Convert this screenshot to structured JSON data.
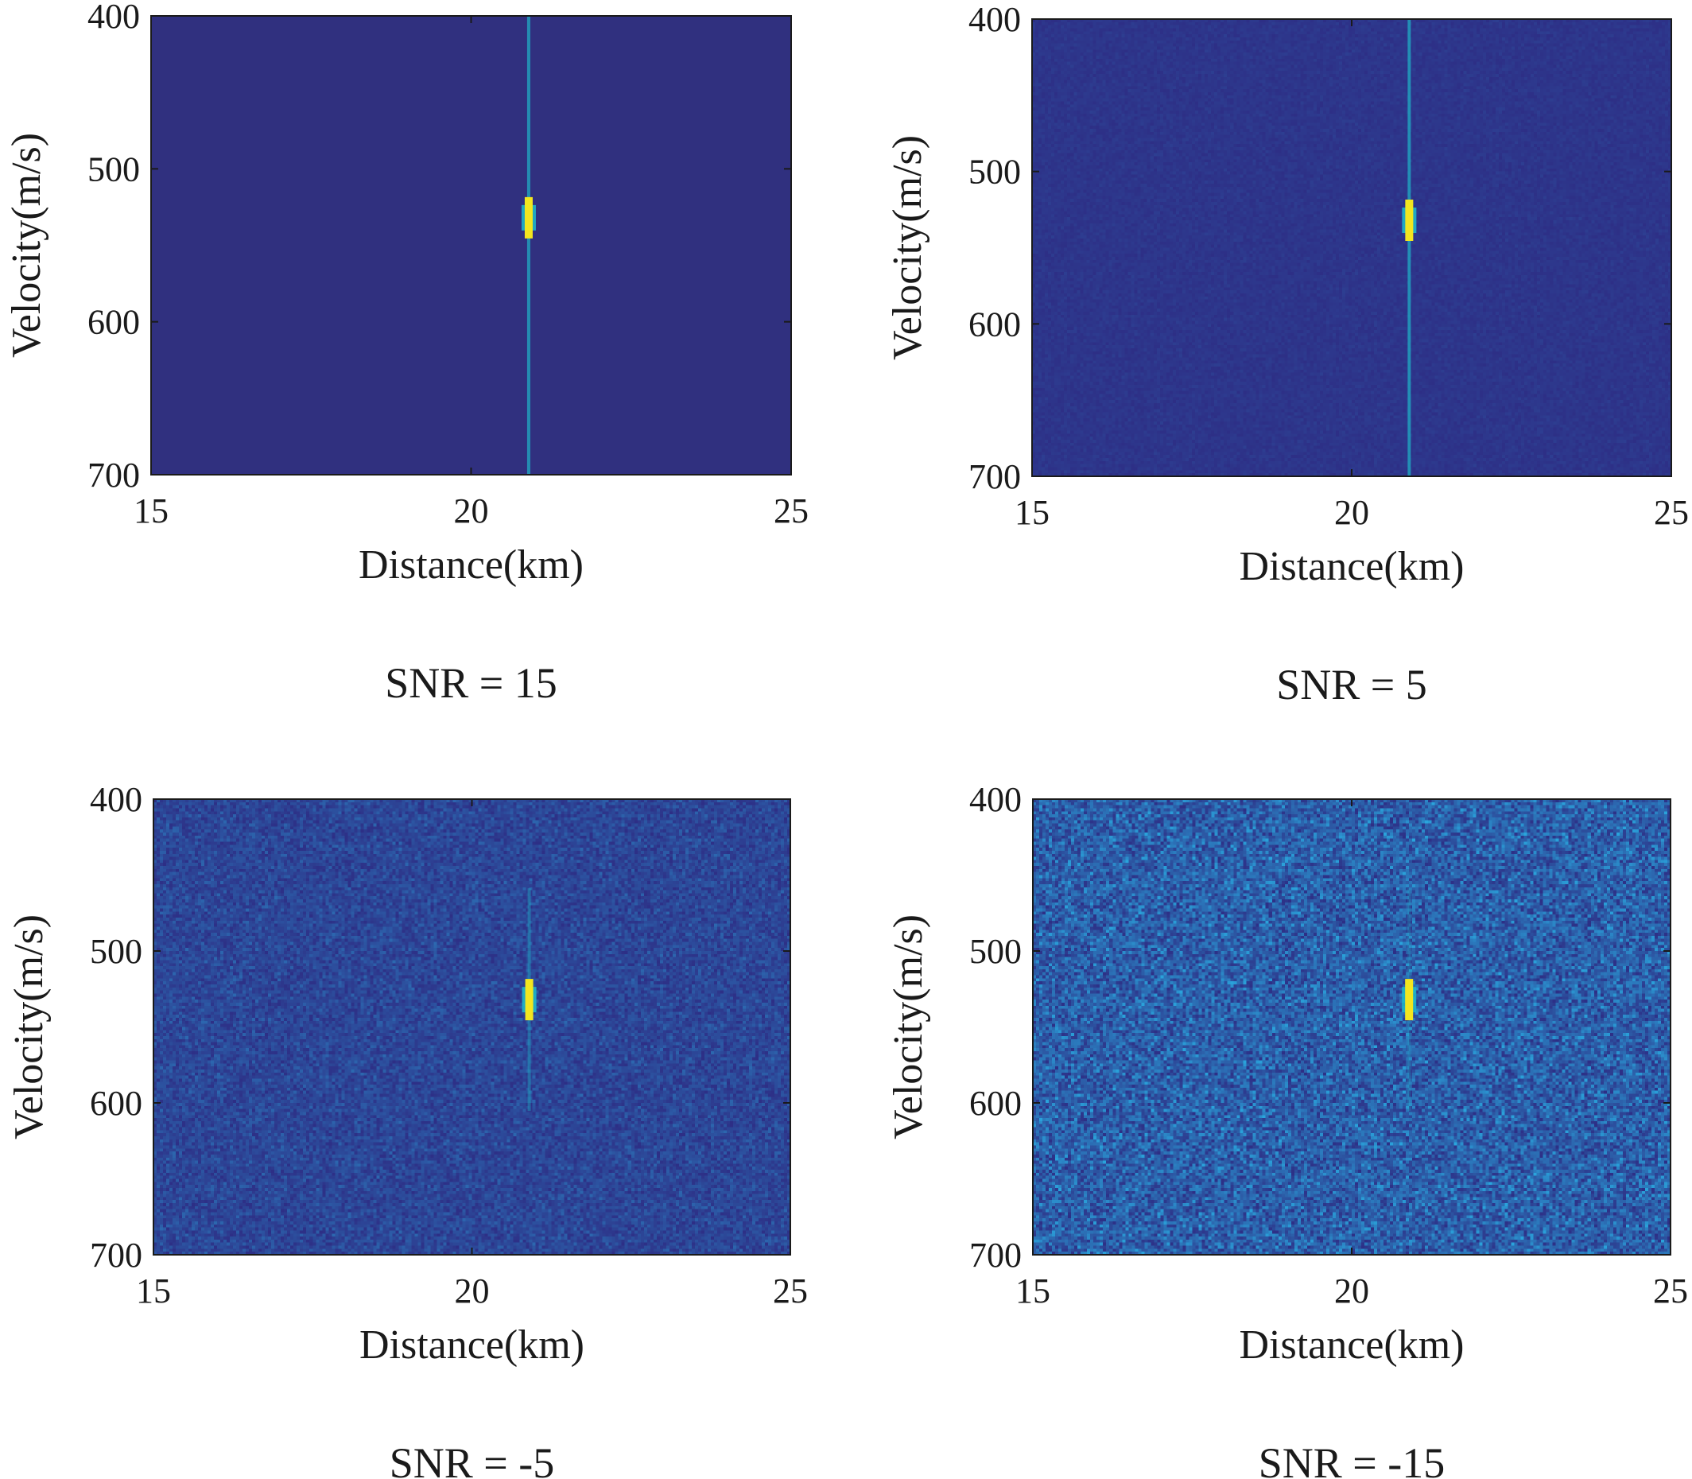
{
  "colors": {
    "background": "#30307f",
    "noise_low": "#2d2f86",
    "noise_high": "#2aa7de",
    "peak_core": "#f3e61f",
    "peak_mid": "#1fb5c8",
    "axis": "#1a1a1a"
  },
  "chart_data": [
    {
      "type": "heatmap",
      "caption": "SNR = 15",
      "snr": 15,
      "xlabel": "Distance(km)",
      "ylabel": "Velocity(m/s)",
      "xlim": [
        15,
        25
      ],
      "ylim": [
        400,
        700
      ],
      "y_reversed": true,
      "xticks": [
        15,
        20,
        25
      ],
      "yticks": [
        400,
        500,
        600,
        700
      ],
      "grid": false,
      "peak": {
        "distance_km": 20.9,
        "velocity_ms": 532
      },
      "noise_level": 0.0
    },
    {
      "type": "heatmap",
      "caption": "SNR = 5",
      "snr": 5,
      "xlabel": "Distance(km)",
      "ylabel": "Velocity(m/s)",
      "xlim": [
        15,
        25
      ],
      "ylim": [
        400,
        700
      ],
      "y_reversed": true,
      "xticks": [
        15,
        20,
        25
      ],
      "yticks": [
        400,
        500,
        600,
        700
      ],
      "grid": false,
      "peak": {
        "distance_km": 20.9,
        "velocity_ms": 532
      },
      "noise_level": 0.08
    },
    {
      "type": "heatmap",
      "caption": "SNR = -5",
      "snr": -5,
      "xlabel": "Distance(km)",
      "ylabel": "Velocity(m/s)",
      "xlim": [
        15,
        25
      ],
      "ylim": [
        400,
        700
      ],
      "y_reversed": true,
      "xticks": [
        15,
        20,
        25
      ],
      "yticks": [
        400,
        500,
        600,
        700
      ],
      "grid": false,
      "peak": {
        "distance_km": 20.9,
        "velocity_ms": 532
      },
      "noise_level": 0.3
    },
    {
      "type": "heatmap",
      "caption": "SNR = -15",
      "snr": -15,
      "xlabel": "Distance(km)",
      "ylabel": "Velocity(m/s)",
      "xlim": [
        15,
        25
      ],
      "ylim": [
        400,
        700
      ],
      "y_reversed": true,
      "xticks": [
        15,
        20,
        25
      ],
      "yticks": [
        400,
        500,
        600,
        700
      ],
      "grid": false,
      "peak": {
        "distance_km": 20.9,
        "velocity_ms": 532
      },
      "noise_level": 0.62
    }
  ]
}
